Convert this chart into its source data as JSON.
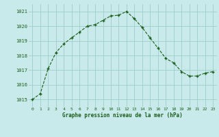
{
  "hours": [
    0,
    1,
    2,
    3,
    4,
    5,
    6,
    7,
    8,
    9,
    10,
    11,
    12,
    13,
    14,
    15,
    16,
    17,
    18,
    19,
    20,
    21,
    22,
    23
  ],
  "pressure": [
    1015.0,
    1015.4,
    1017.1,
    1018.2,
    1018.8,
    1019.2,
    1019.6,
    1020.0,
    1020.1,
    1020.4,
    1020.7,
    1020.75,
    1021.0,
    1020.5,
    1019.9,
    1019.2,
    1018.5,
    1017.8,
    1017.5,
    1016.9,
    1016.6,
    1016.6,
    1016.8,
    1016.9
  ],
  "line_color": "#1a5c1a",
  "marker": "+",
  "bg_color": "#c8eaea",
  "grid_color": "#a0cccc",
  "ylabel_ticks": [
    1015,
    1016,
    1017,
    1018,
    1019,
    1020,
    1021
  ],
  "xlabel_label": "Graphe pression niveau de la mer (hPa)",
  "ylim": [
    1014.5,
    1021.5
  ],
  "xlim": [
    -0.5,
    23.5
  ]
}
